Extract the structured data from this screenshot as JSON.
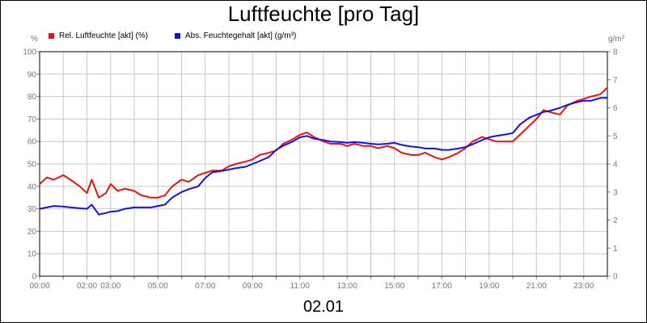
{
  "chart_data": {
    "type": "line",
    "title": "Luftfeuchte [pro Tag]",
    "date_label": "02.01",
    "y_left_unit": "%",
    "y_right_unit": "g/m³",
    "y_left_lim": [
      0,
      100
    ],
    "y_left_ticks": [
      "0",
      "10",
      "20",
      "30",
      "40",
      "50",
      "60",
      "70",
      "80",
      "90",
      "100"
    ],
    "y_right_lim": [
      0,
      8
    ],
    "y_right_ticks": [
      "0",
      "1",
      "2",
      "3",
      "4",
      "5",
      "6",
      "7",
      "8"
    ],
    "x_lim_hours": [
      0,
      24
    ],
    "x_ticks": [
      {
        "h": 0,
        "label": "00:00"
      },
      {
        "h": 2,
        "label": "02:00"
      },
      {
        "h": 3,
        "label": "03:00"
      },
      {
        "h": 5,
        "label": "05:00"
      },
      {
        "h": 7,
        "label": "07:00"
      },
      {
        "h": 9,
        "label": "09:00"
      },
      {
        "h": 11,
        "label": "11:00"
      },
      {
        "h": 13,
        "label": "13:00"
      },
      {
        "h": 15,
        "label": "15:00"
      },
      {
        "h": 17,
        "label": "17:00"
      },
      {
        "h": 19,
        "label": "19:00"
      },
      {
        "h": 21,
        "label": "21:00"
      },
      {
        "h": 23,
        "label": "23:00"
      }
    ],
    "grid": true,
    "legend_position": "top-left",
    "series": [
      {
        "name": "Rel. Luftfeuchte [akt] (%)",
        "color": "#ee1111",
        "axis": "left",
        "x": [
          0,
          0.3,
          0.6,
          1.0,
          1.3,
          1.7,
          2.0,
          2.2,
          2.5,
          2.8,
          3.0,
          3.3,
          3.6,
          4.0,
          4.3,
          4.7,
          5.0,
          5.3,
          5.6,
          6.0,
          6.3,
          6.7,
          7.0,
          7.3,
          7.7,
          8.0,
          8.3,
          8.7,
          9.0,
          9.3,
          9.7,
          10.0,
          10.3,
          10.7,
          11.0,
          11.3,
          11.6,
          12.0,
          12.3,
          12.7,
          13.0,
          13.3,
          13.7,
          14.0,
          14.3,
          14.7,
          15.0,
          15.3,
          15.7,
          16.0,
          16.3,
          16.7,
          17.0,
          17.3,
          17.7,
          18.0,
          18.3,
          18.7,
          19.0,
          19.3,
          19.7,
          20.0,
          20.3,
          20.7,
          21.0,
          21.3,
          21.6,
          22.0,
          22.3,
          22.7,
          23.0,
          23.3,
          23.7,
          24.0
        ],
        "values": [
          41,
          44,
          43,
          45,
          43,
          40,
          37,
          43,
          35,
          37,
          41,
          38,
          39,
          38,
          36,
          35,
          35,
          36,
          40,
          43,
          42,
          45,
          46,
          47,
          47,
          49,
          50,
          51,
          52,
          54,
          55,
          56,
          59,
          61,
          63,
          64,
          62,
          60,
          59,
          59,
          58,
          59,
          58,
          58,
          57,
          58,
          57,
          55,
          54,
          54,
          55,
          53,
          52,
          53,
          55,
          57,
          60,
          62,
          61,
          60,
          60,
          60,
          63,
          67,
          70,
          74,
          73,
          72,
          76,
          78,
          79,
          80,
          81,
          84
        ]
      },
      {
        "name": "Abs. Feuchtegehalt [akt] (g/m³)",
        "color": "#1111ee",
        "axis": "right",
        "x": [
          0,
          0.3,
          0.6,
          1.0,
          1.3,
          1.7,
          2.0,
          2.2,
          2.5,
          2.8,
          3.0,
          3.3,
          3.6,
          4.0,
          4.3,
          4.7,
          5.0,
          5.3,
          5.6,
          6.0,
          6.3,
          6.7,
          7.0,
          7.3,
          7.7,
          8.0,
          8.3,
          8.7,
          9.0,
          9.3,
          9.7,
          10.0,
          10.3,
          10.7,
          11.0,
          11.3,
          11.6,
          12.0,
          12.3,
          12.7,
          13.0,
          13.3,
          13.7,
          14.0,
          14.3,
          14.7,
          15.0,
          15.3,
          15.7,
          16.0,
          16.3,
          16.7,
          17.0,
          17.3,
          17.7,
          18.0,
          18.3,
          18.7,
          19.0,
          19.3,
          19.7,
          20.0,
          20.3,
          20.7,
          21.0,
          21.3,
          21.6,
          22.0,
          22.3,
          22.7,
          23.0,
          23.3,
          23.7,
          24.0
        ],
        "values": [
          2.4,
          2.45,
          2.5,
          2.48,
          2.45,
          2.42,
          2.4,
          2.55,
          2.2,
          2.25,
          2.3,
          2.32,
          2.4,
          2.45,
          2.45,
          2.45,
          2.5,
          2.55,
          2.8,
          3.0,
          3.1,
          3.2,
          3.5,
          3.7,
          3.75,
          3.8,
          3.85,
          3.9,
          4.0,
          4.1,
          4.25,
          4.5,
          4.65,
          4.8,
          4.95,
          5.0,
          4.9,
          4.85,
          4.8,
          4.78,
          4.75,
          4.78,
          4.75,
          4.72,
          4.7,
          4.72,
          4.75,
          4.68,
          4.62,
          4.6,
          4.55,
          4.55,
          4.5,
          4.5,
          4.55,
          4.6,
          4.7,
          4.85,
          4.95,
          5.0,
          5.05,
          5.1,
          5.4,
          5.65,
          5.75,
          5.85,
          5.9,
          6.0,
          6.1,
          6.2,
          6.25,
          6.25,
          6.35,
          6.35
        ]
      }
    ]
  }
}
